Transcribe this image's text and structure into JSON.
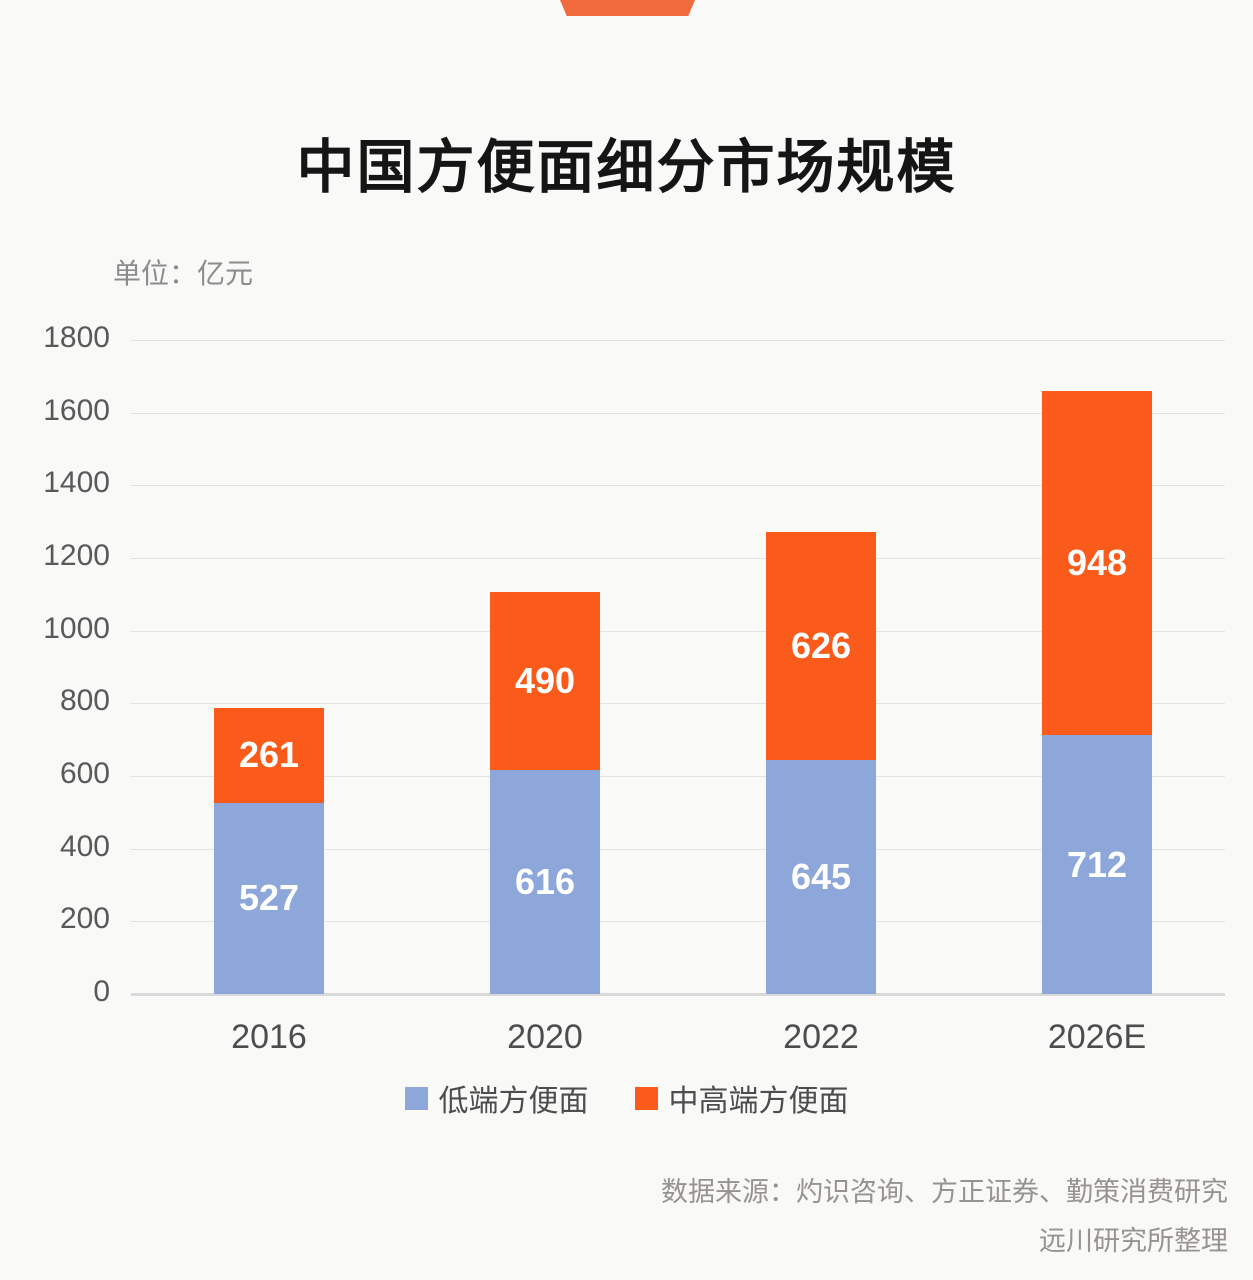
{
  "page": {
    "title": "中国方便面细分市场规模",
    "unit_label": "单位：亿元",
    "source_line1": "数据来源：灼识咨询、方正证券、勤策消费研究",
    "source_line2": "远川研究所整理"
  },
  "colors": {
    "background": "#F9F9F8",
    "ribbon": "#F26B3E",
    "low_end_blue": "#8EA7DB",
    "mid_high_orange": "#FA5A1A",
    "gridline": "#E3E3E3",
    "baseline": "#D9D9D9",
    "axis_text": "#595959",
    "category_text": "#4D4D4D",
    "bar_value_text": "#FFFFFF",
    "muted_text": "#8C8C8C"
  },
  "chart_data": {
    "type": "bar",
    "stacked": true,
    "title": "中国方便面细分市场规模",
    "unit": "亿元",
    "categories": [
      "2016",
      "2020",
      "2022",
      "2026E"
    ],
    "series": [
      {
        "name": "低端方便面",
        "color": "#8EA7DB",
        "values": [
          527,
          616,
          645,
          712
        ]
      },
      {
        "name": "中高端方便面",
        "color": "#FA5A1A",
        "values": [
          261,
          490,
          626,
          948
        ]
      }
    ],
    "totals": [
      788,
      1106,
      1271,
      1660
    ],
    "ylim": [
      0,
      1800
    ],
    "ytick_step": 200,
    "yticks": [
      0,
      200,
      400,
      600,
      800,
      1000,
      1200,
      1400,
      1600,
      1800
    ],
    "grid": true,
    "legend_position": "bottom",
    "value_labels": "inside-center"
  }
}
